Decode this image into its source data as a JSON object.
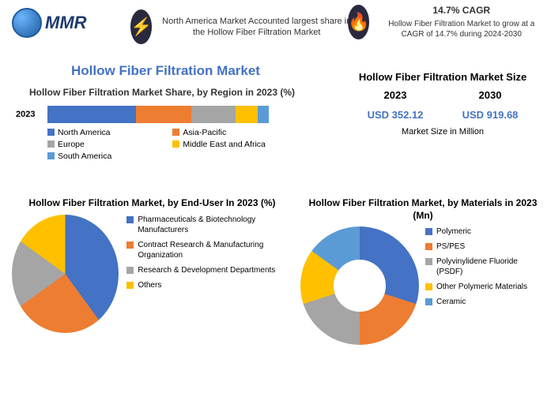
{
  "logo": {
    "text": "MMR"
  },
  "top1": {
    "icon": "⚡",
    "text": "North America Market Accounted largest share in the Hollow Fiber Filtration Market"
  },
  "top2": {
    "icon": "🔥",
    "cagr": "14.7% CAGR",
    "text": "Hollow Fiber Filtration Market to grow at a CAGR of 14.7% during 2024-2030"
  },
  "main_title": "Hollow Fiber Filtration Market",
  "region": {
    "title": "Hollow Fiber Filtration Market Share, by Region in 2023 (%)",
    "year": "2023",
    "segments": [
      {
        "label": "North America",
        "value": 40,
        "color": "#4472c4"
      },
      {
        "label": "Asia-Pacific",
        "value": 25,
        "color": "#ed7d31"
      },
      {
        "label": "Europe",
        "value": 20,
        "color": "#a5a5a5"
      },
      {
        "label": "Middle East and Africa",
        "value": 10,
        "color": "#ffc000"
      },
      {
        "label": "South America",
        "value": 5,
        "color": "#5b9bd5"
      }
    ]
  },
  "size": {
    "title": "Hollow Fiber Filtration Market Size",
    "year1": "2023",
    "year2": "2030",
    "val1": "USD 352.12",
    "val2": "USD 919.68",
    "unit": "Market Size in Million"
  },
  "enduser": {
    "title": "Hollow Fiber Filtration Market, by End-User In 2023 (%)",
    "segments": [
      {
        "label": "Pharmaceuticals & Biotechnology Manufacturers",
        "value": 40,
        "color": "#4472c4"
      },
      {
        "label": "Contract Research & Manufacturing Organization",
        "value": 25,
        "color": "#ed7d31"
      },
      {
        "label": "Research & Development Departments",
        "value": 20,
        "color": "#a5a5a5"
      },
      {
        "label": "Others",
        "value": 15,
        "color": "#ffc000"
      }
    ]
  },
  "materials": {
    "title": "Hollow Fiber Filtration Market, by Materials in 2023 (Mn)",
    "segments": [
      {
        "label": "Polymeric",
        "value": 30,
        "color": "#4472c4"
      },
      {
        "label": "PS/PES",
        "value": 20,
        "color": "#ed7d31"
      },
      {
        "label": "Polyvinylidene Fluoride (PSDF)",
        "value": 20,
        "color": "#a5a5a5"
      },
      {
        "label": "Other Polymeric Materials",
        "value": 15,
        "color": "#ffc000"
      },
      {
        "label": "Ceramic",
        "value": 15,
        "color": "#5b9bd5"
      }
    ]
  }
}
